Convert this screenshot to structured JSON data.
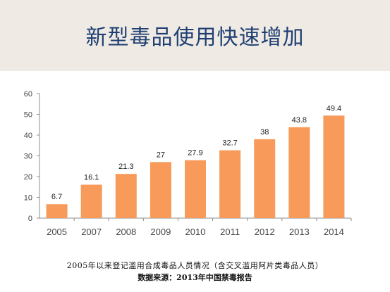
{
  "slide": {
    "title": "新型毒品使用快速增加",
    "caption_line1": "2005年以来登记滥用合成毒品人员情况（含交叉滥用阿片类毒品人员）",
    "caption_line2": "数据来源：2013年中国禁毒报告"
  },
  "colors": {
    "bar": "#f79a5a",
    "band": "#efeae3",
    "title": "#1f3f73"
  },
  "chart_data": {
    "type": "bar",
    "title": "",
    "xlabel": "",
    "ylabel": "",
    "categories": [
      "2005",
      "2007",
      "2008",
      "2009",
      "2010",
      "2011",
      "2012",
      "2013",
      "2014"
    ],
    "values": [
      6.7,
      16.1,
      21.3,
      27,
      27.9,
      32.7,
      38,
      43.8,
      49.4
    ],
    "value_labels": [
      "6.7",
      "16.1",
      "21.3",
      "27",
      "27.9",
      "32.7",
      "38",
      "43.8",
      "49.4"
    ],
    "ylim": [
      0,
      60
    ],
    "yticks": [
      "0",
      "10",
      "20",
      "30",
      "40",
      "50",
      "60"
    ],
    "grid": false,
    "legend": "none"
  }
}
